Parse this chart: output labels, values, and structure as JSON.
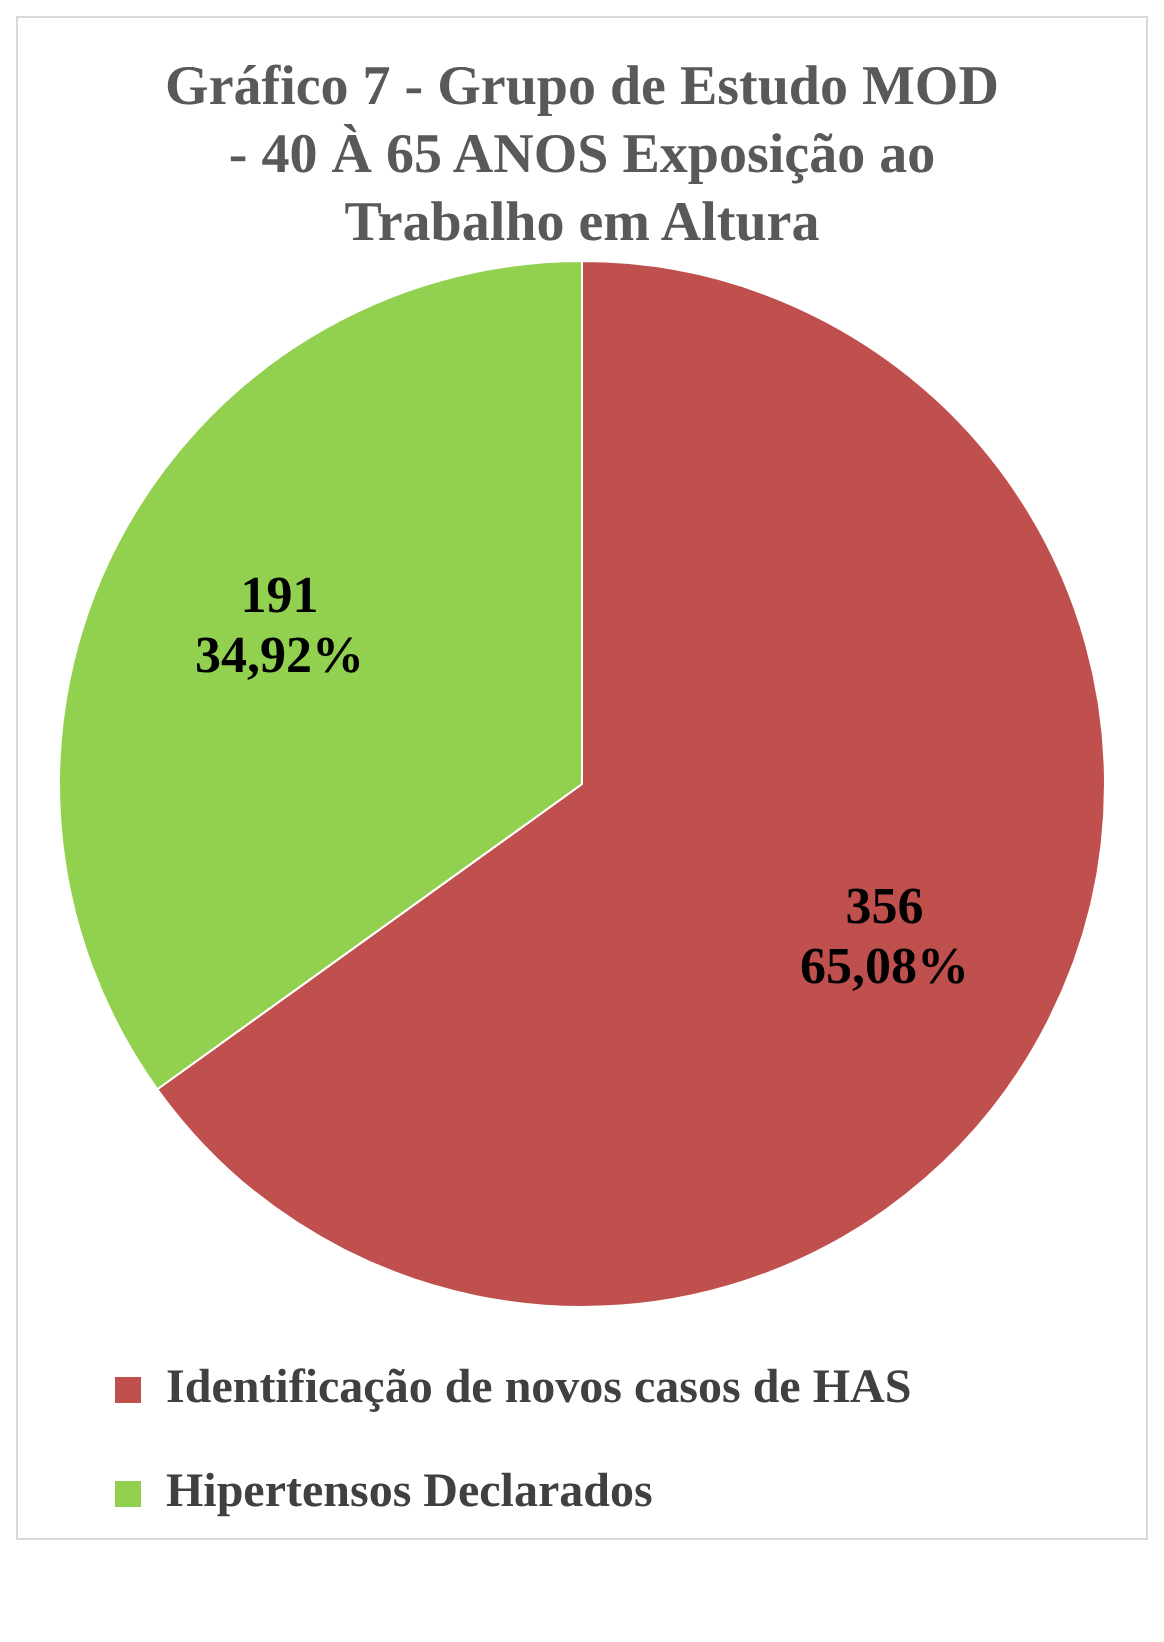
{
  "chart_data": {
    "type": "pie",
    "title": "Gráfico 7 - Grupo de Estudo MOD - 40 À 65 ANOS Exposição ao Trabalho em Altura",
    "categories": [
      "Identificação de novos casos de HAS",
      "Hipertensos Declarados"
    ],
    "values": [
      356,
      191
    ],
    "colors": [
      "#c0504d",
      "#92d050"
    ],
    "value_labels": [
      "356\n65,08%",
      "191\n34,92%"
    ],
    "legend": "bottom"
  }
}
